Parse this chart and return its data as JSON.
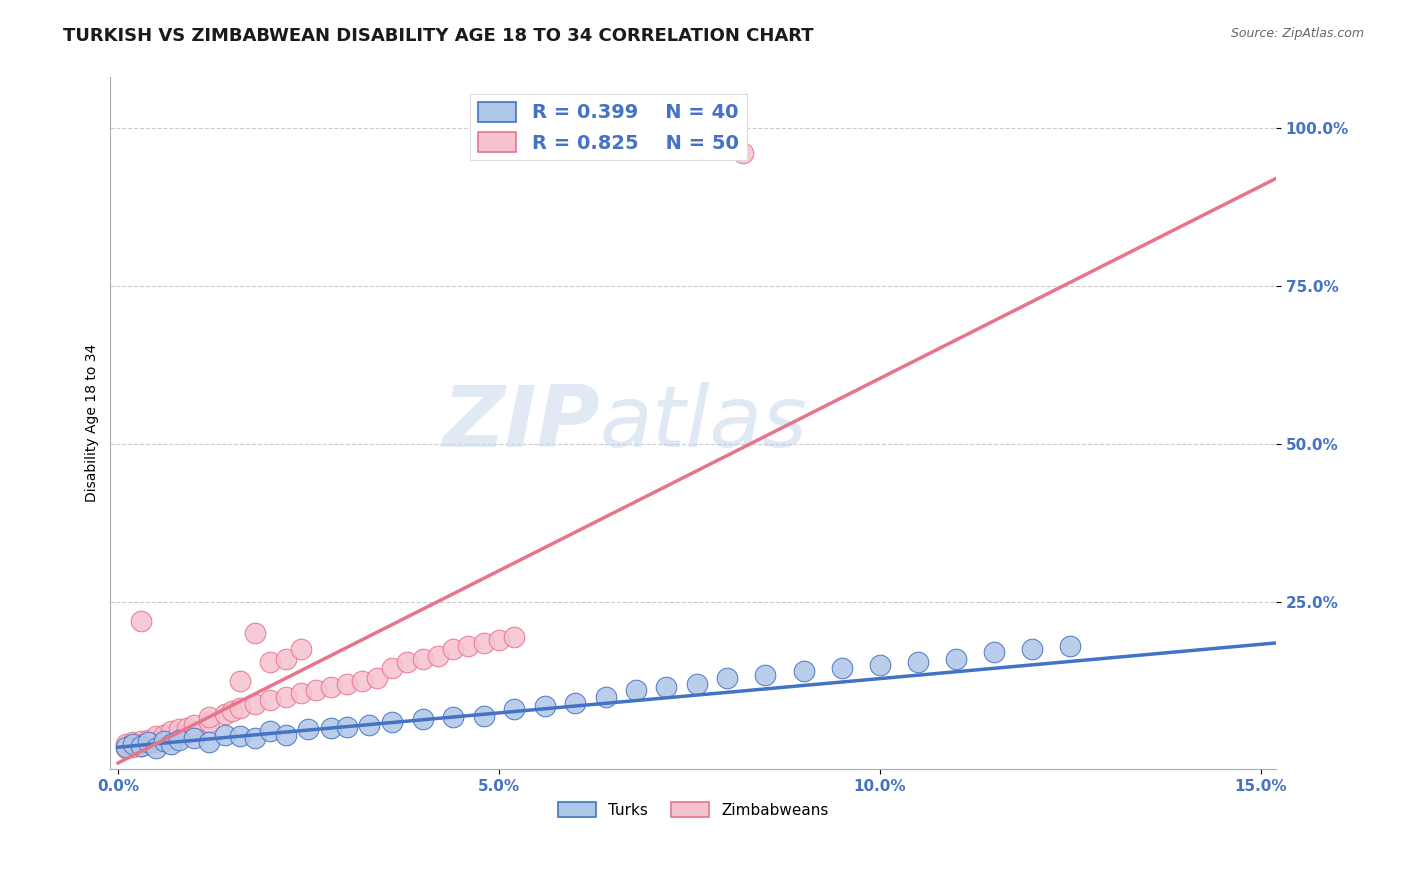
{
  "title": "TURKISH VS ZIMBABWEAN DISABILITY AGE 18 TO 34 CORRELATION CHART",
  "source": "Source: ZipAtlas.com",
  "ylabel": "Disability Age 18 to 34",
  "watermark": "ZIPatlas",
  "xlim": [
    -0.001,
    0.152
  ],
  "ylim": [
    -0.015,
    1.08
  ],
  "xticks": [
    0.0,
    0.05,
    0.1,
    0.15
  ],
  "xticklabels": [
    "0.0%",
    "5.0%",
    "10.0%",
    "15.0%"
  ],
  "ytick_positions": [
    0.25,
    0.5,
    0.75,
    1.0
  ],
  "ytick_labels": [
    "25.0%",
    "50.0%",
    "75.0%",
    "100.0%"
  ],
  "turks_R": 0.399,
  "turks_N": 40,
  "zimbabweans_R": 0.825,
  "zimbabweans_N": 50,
  "turks_color": "#aec6e8",
  "turks_line_color": "#4472c4",
  "zimbabweans_color": "#f5c2d0",
  "zimbabweans_line_color": "#e8748a",
  "tick_color": "#4472c4",
  "background_color": "#ffffff",
  "grid_color": "#cccccc",
  "title_fontsize": 13,
  "axis_label_fontsize": 10,
  "tick_fontsize": 11,
  "legend_fontsize": 14,
  "turks_line_x": [
    0.0,
    0.152
  ],
  "turks_line_y": [
    0.02,
    0.185
  ],
  "zimbab_line_x": [
    0.0,
    0.152
  ],
  "zimbab_line_y": [
    -0.005,
    0.92
  ],
  "turks_scatter_x": [
    0.001,
    0.002,
    0.003,
    0.004,
    0.005,
    0.006,
    0.007,
    0.008,
    0.01,
    0.012,
    0.014,
    0.016,
    0.018,
    0.02,
    0.022,
    0.025,
    0.028,
    0.03,
    0.033,
    0.036,
    0.04,
    0.044,
    0.048,
    0.052,
    0.056,
    0.06,
    0.064,
    0.068,
    0.072,
    0.076,
    0.08,
    0.085,
    0.09,
    0.095,
    0.1,
    0.105,
    0.11,
    0.115,
    0.12,
    0.125
  ],
  "turks_scatter_y": [
    0.02,
    0.025,
    0.022,
    0.028,
    0.018,
    0.03,
    0.025,
    0.032,
    0.035,
    0.028,
    0.04,
    0.038,
    0.035,
    0.045,
    0.04,
    0.048,
    0.05,
    0.052,
    0.055,
    0.06,
    0.065,
    0.068,
    0.07,
    0.08,
    0.085,
    0.09,
    0.1,
    0.11,
    0.115,
    0.12,
    0.13,
    0.135,
    0.14,
    0.145,
    0.15,
    0.155,
    0.16,
    0.17,
    0.175,
    0.18
  ],
  "zimbab_scatter_x": [
    0.001,
    0.001,
    0.002,
    0.002,
    0.003,
    0.003,
    0.004,
    0.004,
    0.005,
    0.005,
    0.006,
    0.006,
    0.007,
    0.007,
    0.008,
    0.008,
    0.009,
    0.009,
    0.01,
    0.01,
    0.012,
    0.012,
    0.014,
    0.015,
    0.016,
    0.018,
    0.02,
    0.022,
    0.024,
    0.026,
    0.028,
    0.03,
    0.032,
    0.034,
    0.036,
    0.038,
    0.04,
    0.042,
    0.044,
    0.046,
    0.048,
    0.05,
    0.052,
    0.016,
    0.018,
    0.02,
    0.022,
    0.024,
    0.082,
    0.003
  ],
  "zimbab_scatter_y": [
    0.018,
    0.025,
    0.02,
    0.028,
    0.022,
    0.03,
    0.025,
    0.032,
    0.028,
    0.038,
    0.035,
    0.04,
    0.038,
    0.045,
    0.04,
    0.048,
    0.042,
    0.05,
    0.045,
    0.055,
    0.06,
    0.068,
    0.072,
    0.078,
    0.082,
    0.088,
    0.095,
    0.1,
    0.105,
    0.11,
    0.115,
    0.12,
    0.125,
    0.13,
    0.145,
    0.155,
    0.16,
    0.165,
    0.175,
    0.18,
    0.185,
    0.19,
    0.195,
    0.125,
    0.2,
    0.155,
    0.16,
    0.175,
    0.96,
    0.22
  ]
}
